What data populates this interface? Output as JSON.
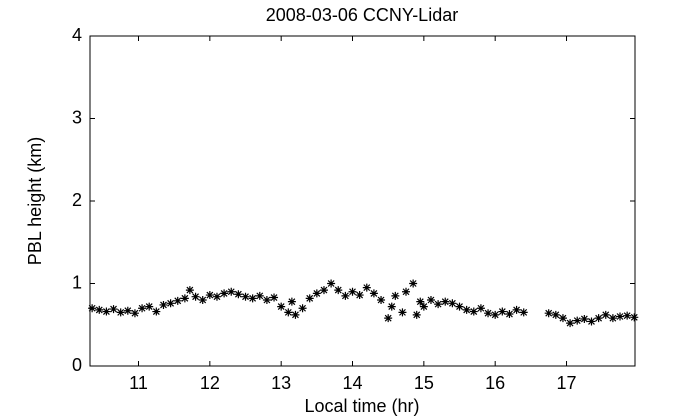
{
  "chart_data": {
    "type": "scatter",
    "title": "2008-03-06 CCNY-Lidar",
    "xlabel": "Local time (hr)",
    "ylabel": "PBL height (km)",
    "x": [
      10.35,
      10.45,
      10.55,
      10.65,
      10.75,
      10.85,
      10.95,
      11.05,
      11.15,
      11.25,
      11.35,
      11.45,
      11.55,
      11.65,
      11.72,
      11.8,
      11.9,
      12.0,
      12.1,
      12.2,
      12.3,
      12.4,
      12.5,
      12.6,
      12.7,
      12.8,
      12.9,
      13.0,
      13.1,
      13.15,
      13.2,
      13.3,
      13.4,
      13.5,
      13.6,
      13.7,
      13.8,
      13.9,
      14.0,
      14.1,
      14.2,
      14.3,
      14.4,
      14.5,
      14.55,
      14.6,
      14.7,
      14.75,
      14.85,
      14.9,
      14.95,
      15.0,
      15.1,
      15.2,
      15.3,
      15.4,
      15.5,
      15.6,
      15.7,
      15.8,
      15.9,
      16.0,
      16.1,
      16.2,
      16.3,
      16.4,
      16.75,
      16.85,
      16.95,
      17.05,
      17.15,
      17.25,
      17.35,
      17.45,
      17.55,
      17.65,
      17.75,
      17.85,
      17.95
    ],
    "values": [
      0.7,
      0.68,
      0.66,
      0.69,
      0.65,
      0.67,
      0.64,
      0.7,
      0.72,
      0.66,
      0.74,
      0.76,
      0.79,
      0.82,
      0.92,
      0.84,
      0.8,
      0.86,
      0.84,
      0.88,
      0.9,
      0.87,
      0.84,
      0.82,
      0.85,
      0.8,
      0.83,
      0.72,
      0.65,
      0.78,
      0.62,
      0.7,
      0.82,
      0.88,
      0.92,
      1.0,
      0.92,
      0.85,
      0.9,
      0.86,
      0.95,
      0.88,
      0.8,
      0.58,
      0.72,
      0.85,
      0.65,
      0.9,
      1.0,
      0.62,
      0.78,
      0.72,
      0.8,
      0.75,
      0.78,
      0.76,
      0.72,
      0.68,
      0.66,
      0.7,
      0.64,
      0.62,
      0.66,
      0.63,
      0.68,
      0.65,
      0.64,
      0.62,
      0.58,
      0.52,
      0.55,
      0.57,
      0.54,
      0.58,
      0.62,
      0.58,
      0.6,
      0.61,
      0.59
    ],
    "color": "#000000",
    "xlim": [
      10.32,
      17.96
    ],
    "ylim": [
      0,
      4
    ],
    "xticks": [
      11,
      12,
      13,
      14,
      15,
      16,
      17
    ],
    "yticks": [
      0,
      1,
      2,
      3,
      4
    ]
  }
}
